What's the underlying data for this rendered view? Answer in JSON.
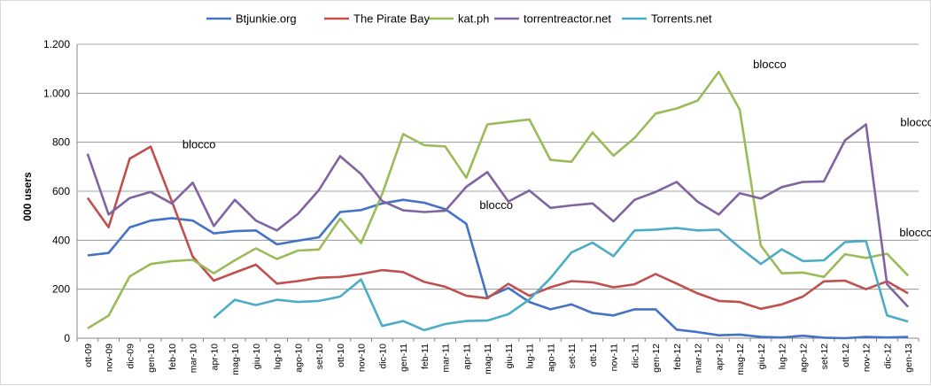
{
  "chart_data": {
    "type": "line",
    "title": "",
    "xlabel": "",
    "ylabel": "000 users",
    "ylim": [
      0,
      1200
    ],
    "yticks": [
      0,
      200,
      400,
      600,
      800,
      1000,
      1200
    ],
    "ytick_labels": [
      "0",
      "200",
      "400",
      "600",
      "800",
      "1.000",
      "1.200"
    ],
    "grid": "horizontal",
    "legend_position": "top",
    "categories": [
      "ott-09",
      "nov-09",
      "dic-09",
      "gen-10",
      "feb-10",
      "mar-10",
      "apr-10",
      "mag-10",
      "giu-10",
      "lug-10",
      "ago-10",
      "set-10",
      "ott-10",
      "nov-10",
      "dic-10",
      "gen-11",
      "feb-11",
      "mar-11",
      "apr-11",
      "mag-11",
      "giu-11",
      "lug-11",
      "ago-11",
      "set-11",
      "ott-11",
      "nov-11",
      "dic-11",
      "gen-12",
      "feb-12",
      "mar-12",
      "apr-12",
      "mag-12",
      "giu-12",
      "lug-12",
      "ago-12",
      "set-12",
      "ott-12",
      "nov-12",
      "dic-12",
      "gen-13"
    ],
    "series": [
      {
        "name": "Btjunkie.org",
        "color": "#4472c4",
        "values": [
          338,
          348,
          452,
          480,
          490,
          480,
          428,
          437,
          440,
          383,
          398,
          412,
          515,
          523,
          550,
          565,
          553,
          527,
          467,
          167,
          205,
          148,
          118,
          138,
          103,
          93,
          118,
          118,
          35,
          25,
          12,
          15,
          5,
          3,
          10,
          2,
          0,
          5,
          3,
          5
        ]
      },
      {
        "name": "The Pirate Bay",
        "color": "#c0504d",
        "values": [
          573,
          453,
          733,
          782,
          560,
          333,
          235,
          268,
          300,
          223,
          233,
          247,
          250,
          262,
          278,
          270,
          230,
          210,
          173,
          163,
          222,
          173,
          208,
          233,
          228,
          208,
          220,
          262,
          223,
          183,
          152,
          148,
          120,
          138,
          170,
          232,
          235,
          200,
          232,
          183
        ]
      },
      {
        "name": "kat.ph",
        "color": "#9bbb59",
        "values": [
          40,
          92,
          252,
          303,
          315,
          320,
          265,
          318,
          367,
          323,
          358,
          362,
          488,
          388,
          588,
          833,
          788,
          783,
          655,
          873,
          883,
          893,
          728,
          720,
          840,
          745,
          818,
          917,
          938,
          970,
          1088,
          933,
          378,
          265,
          268,
          250,
          343,
          328,
          345,
          255
        ]
      },
      {
        "name": "torrentreactor.net",
        "color": "#8064a2",
        "values": [
          753,
          505,
          572,
          597,
          550,
          635,
          458,
          565,
          480,
          440,
          508,
          605,
          743,
          670,
          560,
          522,
          515,
          520,
          618,
          678,
          558,
          603,
          532,
          542,
          550,
          477,
          565,
          597,
          638,
          557,
          505,
          592,
          570,
          617,
          638,
          640,
          808,
          873,
          220,
          128
        ]
      },
      {
        "name": "Torrents.net",
        "color": "#4bacc6",
        "values": [
          null,
          null,
          null,
          null,
          null,
          null,
          83,
          157,
          135,
          157,
          148,
          152,
          170,
          240,
          50,
          70,
          33,
          58,
          70,
          72,
          98,
          158,
          245,
          350,
          390,
          335,
          440,
          443,
          450,
          440,
          443,
          370,
          303,
          363,
          315,
          318,
          392,
          397,
          93,
          68
        ]
      }
    ],
    "annotations": [
      {
        "text": "blocco",
        "series": "The Pirate Bay",
        "x": "feb-10",
        "y": 782
      },
      {
        "text": "blocco",
        "series": "Btjunkie.org",
        "x": "apr-11",
        "y": 527
      },
      {
        "text": "blocco",
        "series": "kat.ph",
        "x": "mag-12",
        "y": 1088
      },
      {
        "text": "blocco",
        "series": "torrentreactor.net",
        "x": "dic-12",
        "y": 873
      },
      {
        "text": "blocco",
        "series": "Torrents.net",
        "x": "dic-12",
        "y": 397
      }
    ]
  }
}
